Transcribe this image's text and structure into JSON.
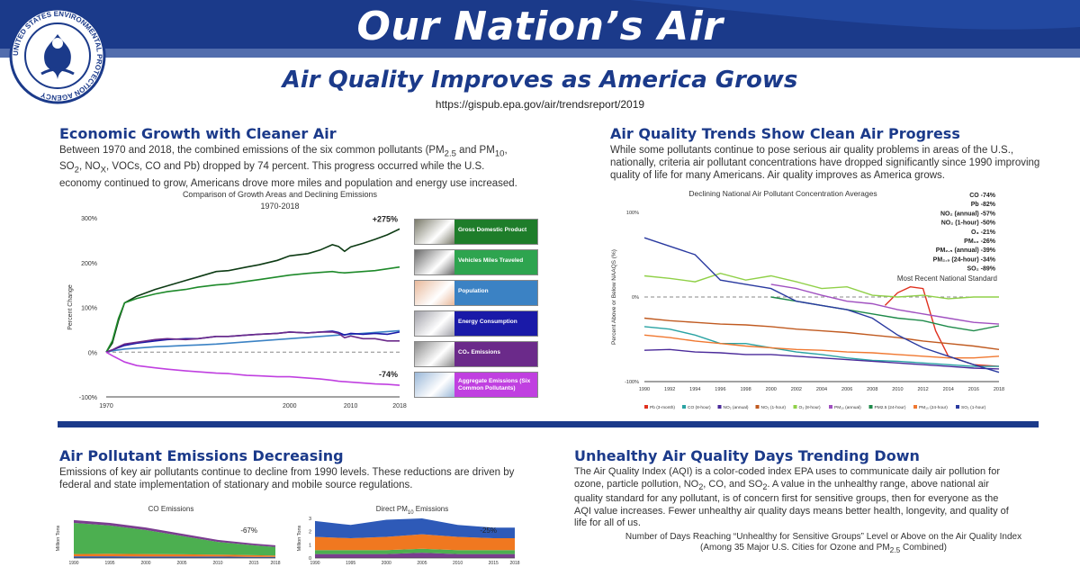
{
  "banner": {
    "title": "Our Nation’s Air",
    "seal_text": "UNITED STATES ENVIRONMENTAL PROTECTION AGENCY"
  },
  "subtitle": "Air Quality Improves as America Grows",
  "url": "https://gispub.epa.gov/air/trendsreport/2019",
  "sections": {
    "growth": {
      "title": "Economic Growth with Cleaner Air",
      "text_html": "Between 1970 and 2018, the combined emissions of the six common pollutants (PM<sub>2.5</sub> and PM<sub>10</sub>, SO<sub>2</sub>, NO<sub>X</sub>, VOCs, CO and Pb) dropped by 74 percent. This progress occurred while the U.S. economy continued to grow, Americans drove more miles and population and energy use increased."
    },
    "trends": {
      "title": "Air Quality Trends Show Clean Air Progress",
      "text_html": "While some pollutants continue to pose serious air quality problems in areas of the U.S., nationally, criteria air pollutant concentrations have dropped significantly since 1990 improving quality of life for many Americans. Air quality improves as America grows."
    },
    "emissions": {
      "title": "Air Pollutant Emissions Decreasing",
      "text_html": "Emissions of key air pollutants continue to decline from 1990 levels. These reductions are driven by federal and state implementation of stationary and mobile source regulations."
    },
    "aqi": {
      "title": "Unhealthy Air Quality Days Trending Down",
      "text_html": "The Air Quality Index (AQI) is a color-coded index EPA uses to communicate daily air pollution for ozone, particle pollution, NO<sub>2</sub>, CO, and SO<sub>2</sub>. A value in the unhealthy range, above national air quality standard for any pollutant, is of concern first for sensitive groups, then for everyone as the AQI value increases. Fewer unhealthy air quality days means better health, longevity, and quality of life for all of us.",
      "chart_title_html": "Number of Days Reaching “Unhealthy for Sensitive Groups” Level or Above on the Air Quality Index<br>(Among 35 Major U.S. Cities for Ozone and PM<sub>2.5</sub> Combined)"
    }
  },
  "colors": {
    "navy": "#1b3a8a",
    "gdp": "#1e7d2a",
    "vmt": "#2ea44f",
    "population": "#3b82c4",
    "energy": "#1a1aa8",
    "co2": "#6b2a8a",
    "aggregate": "#c040e0"
  },
  "chart_data": [
    {
      "type": "line",
      "title": "Comparison of Growth Areas and Declining Emissions",
      "subtitle": "1970-2018",
      "xlabel": "",
      "ylabel": "Percent Change",
      "xlim": [
        1970,
        2018
      ],
      "ylim": [
        -100,
        300
      ],
      "yticks": [
        -100,
        0,
        100,
        200,
        300
      ],
      "ytick_labels": [
        "-100%",
        "0%",
        "100%",
        "200%",
        "300%"
      ],
      "xticks": [
        1970,
        2000,
        2010,
        2018
      ],
      "x": [
        1970,
        1971,
        1972,
        1973,
        1975,
        1978,
        1980,
        1983,
        1985,
        1988,
        1990,
        1993,
        1995,
        1998,
        2000,
        2003,
        2005,
        2007,
        2008,
        2009,
        2010,
        2012,
        2014,
        2016,
        2018
      ],
      "series": [
        {
          "name": "Gross Domestic Product",
          "color": "#0d3b14",
          "values": [
            0,
            20,
            70,
            110,
            125,
            140,
            148,
            160,
            168,
            180,
            182,
            190,
            195,
            205,
            215,
            220,
            228,
            240,
            236,
            225,
            235,
            243,
            252,
            262,
            275
          ],
          "end_label": "+275%"
        },
        {
          "name": "Vehicles Miles Traveled",
          "color": "#1e8a2a",
          "values": [
            0,
            25,
            75,
            110,
            120,
            130,
            135,
            140,
            145,
            150,
            152,
            158,
            162,
            168,
            172,
            176,
            178,
            180,
            178,
            177,
            178,
            180,
            182,
            186,
            190
          ]
        },
        {
          "name": "Population",
          "color": "#3b82c4",
          "values": [
            0,
            3,
            5,
            7,
            9,
            12,
            13,
            15,
            16,
            18,
            20,
            23,
            25,
            28,
            30,
            33,
            35,
            37,
            38,
            39,
            40,
            42,
            44,
            46,
            48
          ]
        },
        {
          "name": "Energy Consumption",
          "color": "#1a1aa8",
          "values": [
            0,
            5,
            10,
            15,
            20,
            25,
            28,
            30,
            30,
            35,
            35,
            38,
            40,
            42,
            45,
            43,
            45,
            47,
            44,
            38,
            42,
            40,
            42,
            40,
            45
          ]
        },
        {
          "name": "CO₂ Emissions",
          "color": "#6b2a8a",
          "values": [
            0,
            5,
            12,
            18,
            22,
            28,
            30,
            28,
            30,
            35,
            35,
            38,
            40,
            42,
            45,
            43,
            45,
            45,
            42,
            32,
            36,
            30,
            30,
            25,
            25
          ]
        },
        {
          "name": "Aggregate Emissions (Six Common Pollutants)",
          "color": "#c040e0",
          "values": [
            0,
            -8,
            -15,
            -22,
            -30,
            -35,
            -38,
            -42,
            -44,
            -47,
            -48,
            -52,
            -53,
            -55,
            -55,
            -58,
            -60,
            -63,
            -65,
            -66,
            -67,
            -69,
            -71,
            -72,
            -74
          ],
          "end_label": "-74%"
        }
      ],
      "legend": [
        "Gross Domestic Product",
        "Vehicles Miles Traveled",
        "Population",
        "Energy Consumption",
        "CO₂ Emissions",
        "Aggregate Emissions (Six Common Pollutants)"
      ],
      "legend_placement": "right"
    },
    {
      "type": "line",
      "title": "Declining National Air Pollutant Concentration Averages",
      "ylabel": "Percent Above or Below NAAQS (%)",
      "xlim": [
        1990,
        2018
      ],
      "ylim": [
        -100,
        100
      ],
      "yticks": [
        -100,
        0,
        100
      ],
      "ytick_labels": [
        "-100%",
        "0%",
        "100%"
      ],
      "xticks": [
        1990,
        1992,
        1994,
        1996,
        1998,
        2000,
        2002,
        2004,
        2006,
        2008,
        2010,
        2012,
        2014,
        2016,
        2018
      ],
      "reference_label": "Most Recent National Standard",
      "reference_value": 0,
      "annotations": [
        "CO -74%",
        "Pb -82%",
        "NO₂ (annual) -57%",
        "NO₂ (1-hour) -50%",
        "O₃ -21%",
        "PM₁₀ -26%",
        "PM₂.₅ (annual) -39%",
        "PM₂.₅ (24-hour) -34%",
        "SO₂ -89%"
      ],
      "series": [
        {
          "name": "Pb (3-month)",
          "color": "#e0301e",
          "x": [
            1990,
            2008,
            2009,
            2010,
            2011,
            2012,
            2013,
            2014,
            2016,
            2018
          ],
          "values": [
            null,
            null,
            -10,
            5,
            12,
            10,
            -40,
            -70,
            -80,
            -82
          ]
        },
        {
          "name": "CO (8-hour)",
          "color": "#2aa3a3",
          "x": [
            1990,
            1992,
            1994,
            1996,
            1998,
            2000,
            2002,
            2004,
            2006,
            2008,
            2010,
            2012,
            2014,
            2016,
            2018
          ],
          "values": [
            -35,
            -38,
            -45,
            -55,
            -55,
            -60,
            -65,
            -68,
            -72,
            -75,
            -76,
            -78,
            -80,
            -82,
            -82
          ]
        },
        {
          "name": "NO₂ (annual)",
          "color": "#4a2a9a",
          "x": [
            1990,
            1992,
            1994,
            1996,
            1998,
            2000,
            2002,
            2004,
            2006,
            2008,
            2010,
            2012,
            2014,
            2016,
            2018
          ],
          "values": [
            -63,
            -62,
            -65,
            -66,
            -68,
            -68,
            -70,
            -72,
            -74,
            -76,
            -78,
            -80,
            -82,
            -84,
            -85
          ]
        },
        {
          "name": "NO₂ (1-hour)",
          "color": "#c05a20",
          "x": [
            1990,
            1992,
            1994,
            1996,
            1998,
            2000,
            2002,
            2004,
            2006,
            2008,
            2010,
            2012,
            2014,
            2016,
            2018
          ],
          "values": [
            -25,
            -28,
            -30,
            -32,
            -33,
            -35,
            -38,
            -40,
            -42,
            -45,
            -48,
            -52,
            -55,
            -58,
            -62
          ]
        },
        {
          "name": "O₃ (8-hour)",
          "color": "#90d048",
          "x": [
            1990,
            1992,
            1994,
            1996,
            1998,
            2000,
            2002,
            2004,
            2006,
            2008,
            2010,
            2012,
            2014,
            2016,
            2018
          ],
          "values": [
            25,
            22,
            18,
            28,
            20,
            25,
            18,
            10,
            12,
            2,
            0,
            2,
            -2,
            0,
            0
          ]
        },
        {
          "name": "PM₁₀ (annual)",
          "color": "#a050c0",
          "x": [
            2000,
            2002,
            2004,
            2006,
            2008,
            2010,
            2012,
            2014,
            2016,
            2018
          ],
          "values": [
            15,
            10,
            2,
            -5,
            -8,
            -15,
            -20,
            -25,
            -30,
            -32
          ]
        },
        {
          "name": "PM2.5 (24-hour)",
          "color": "#1e8a4a",
          "x": [
            2000,
            2002,
            2004,
            2006,
            2008,
            2010,
            2012,
            2014,
            2016,
            2018
          ],
          "values": [
            0,
            -5,
            -10,
            -15,
            -20,
            -25,
            -28,
            -35,
            -40,
            -34
          ]
        },
        {
          "name": "PM₁₀ (24-hour)",
          "color": "#f07830",
          "x": [
            1990,
            1992,
            1994,
            1996,
            1998,
            2000,
            2002,
            2004,
            2006,
            2008,
            2010,
            2012,
            2014,
            2016,
            2018
          ],
          "values": [
            -45,
            -48,
            -52,
            -55,
            -58,
            -60,
            -62,
            -63,
            -65,
            -66,
            -68,
            -70,
            -72,
            -72,
            -70
          ]
        },
        {
          "name": "SO₂ (1-hour)",
          "color": "#2a3aa0",
          "x": [
            1990,
            1992,
            1994,
            1996,
            1998,
            2000,
            2002,
            2004,
            2006,
            2008,
            2010,
            2012,
            2014,
            2016,
            2018
          ],
          "values": [
            70,
            60,
            50,
            20,
            15,
            10,
            -5,
            -10,
            -15,
            -25,
            -45,
            -60,
            -70,
            -80,
            -89
          ]
        }
      ],
      "legend_placement": "bottom"
    },
    {
      "type": "area",
      "title": "CO Emissions",
      "ylabel": "Million Tons",
      "xticks": [
        1990,
        1995,
        2000,
        2005,
        2010,
        2015,
        2018
      ],
      "x": [
        1990,
        1995,
        2000,
        2005,
        2010,
        2015,
        2018
      ],
      "series": [
        {
          "color": "#7a3d8f",
          "values": [
            10,
            9,
            9,
            8,
            7,
            6,
            6
          ]
        },
        {
          "color": "#4caf50",
          "values": [
            110,
            100,
            85,
            65,
            45,
            35,
            30
          ]
        },
        {
          "color": "#f07820",
          "values": [
            8,
            9,
            9,
            8,
            7,
            6,
            5
          ]
        },
        {
          "color": "#2e5ab8",
          "values": [
            6,
            6,
            5,
            5,
            5,
            4,
            4
          ]
        }
      ],
      "annotation": "-67%"
    },
    {
      "type": "area",
      "title_html": "Direct PM<sub>10</sub> Emissions",
      "ylabel": "Million Tons",
      "ylim": [
        0,
        3
      ],
      "yticks": [
        0,
        1,
        2,
        3
      ],
      "xticks": [
        1990,
        1995,
        2000,
        2005,
        2010,
        2015,
        2018
      ],
      "x": [
        1990,
        1995,
        2000,
        2005,
        2010,
        2015,
        2018
      ],
      "series": [
        {
          "color": "#2e5ab8",
          "values": [
            1.2,
            1.0,
            1.3,
            1.2,
            0.9,
            0.8,
            0.8
          ]
        },
        {
          "color": "#f07820",
          "values": [
            1.0,
            0.9,
            1.0,
            1.1,
            1.0,
            0.9,
            0.9
          ]
        },
        {
          "color": "#4caf50",
          "values": [
            0.3,
            0.3,
            0.3,
            0.3,
            0.3,
            0.3,
            0.3
          ]
        },
        {
          "color": "#7a3d8f",
          "values": [
            0.3,
            0.3,
            0.3,
            0.4,
            0.3,
            0.3,
            0.3
          ]
        }
      ],
      "annotation": "-25%"
    }
  ]
}
